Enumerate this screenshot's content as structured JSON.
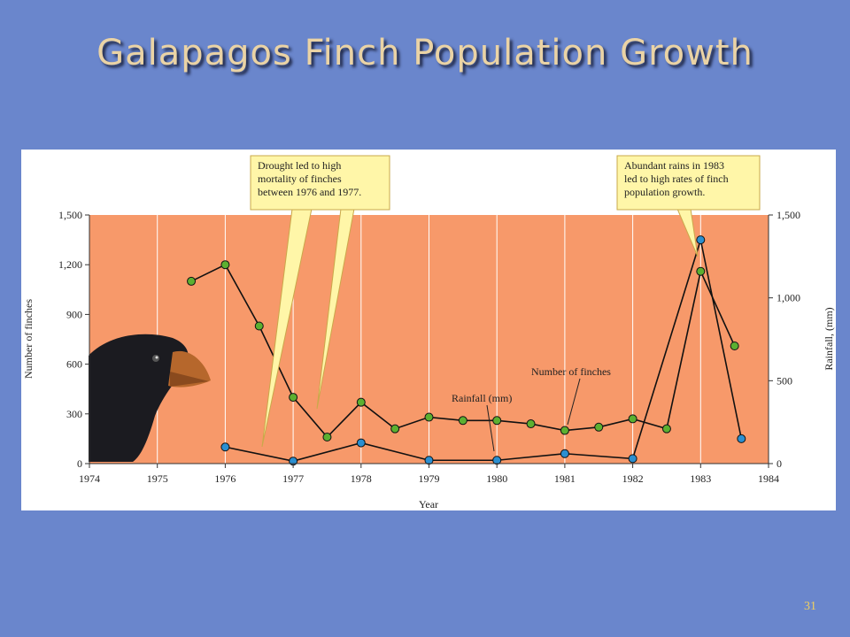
{
  "title": "Galapagos Finch Population Growth",
  "slide_number": "31",
  "chart_data": {
    "type": "line",
    "xlabel": "Year",
    "ylabel": "Number of finches",
    "y2label": "Rainfall, (mm)",
    "xlim": [
      1974,
      1984
    ],
    "xticks": [
      1974,
      1975,
      1976,
      1977,
      1978,
      1979,
      1980,
      1981,
      1982,
      1983,
      1984
    ],
    "ylim": [
      0,
      1500
    ],
    "yticks": [
      0,
      300,
      600,
      900,
      {
        "value": 1200,
        "label": "1,200"
      },
      {
        "value": 1500,
        "label": "1,500"
      }
    ],
    "y2lim": [
      0,
      1500
    ],
    "y2ticks": [
      0,
      500,
      {
        "value": 1000,
        "label": "1,000"
      },
      {
        "value": 1500,
        "label": "1,500"
      }
    ],
    "grid": true,
    "series": [
      {
        "name": "Number of finches",
        "color": "#5cb031",
        "x": [
          1975.5,
          1976,
          1976.5,
          1977,
          1977.5,
          1978,
          1978.5,
          1979,
          1979.5,
          1980,
          1980.5,
          1981,
          1981.5,
          1982,
          1982.5,
          1983,
          1983.5
        ],
        "values": [
          1100,
          1200,
          830,
          400,
          160,
          370,
          210,
          280,
          260,
          260,
          240,
          200,
          220,
          270,
          210,
          1160,
          710
        ]
      },
      {
        "name": "Rainfall (mm)",
        "color": "#2b8fd0",
        "axis": "y2",
        "x": [
          1976,
          1977,
          1978,
          1979,
          1980,
          1981,
          1982,
          1983,
          1983.6
        ],
        "values": [
          100,
          15,
          125,
          20,
          20,
          60,
          30,
          1350,
          150
        ]
      }
    ],
    "annotations": [
      {
        "lines": [
          "Drought led to high",
          "mortality of finches",
          "between 1976 and 1977."
        ]
      },
      {
        "lines": [
          "Abundant rains in 1983",
          "led to high rates of finch",
          "population growth."
        ]
      }
    ]
  }
}
